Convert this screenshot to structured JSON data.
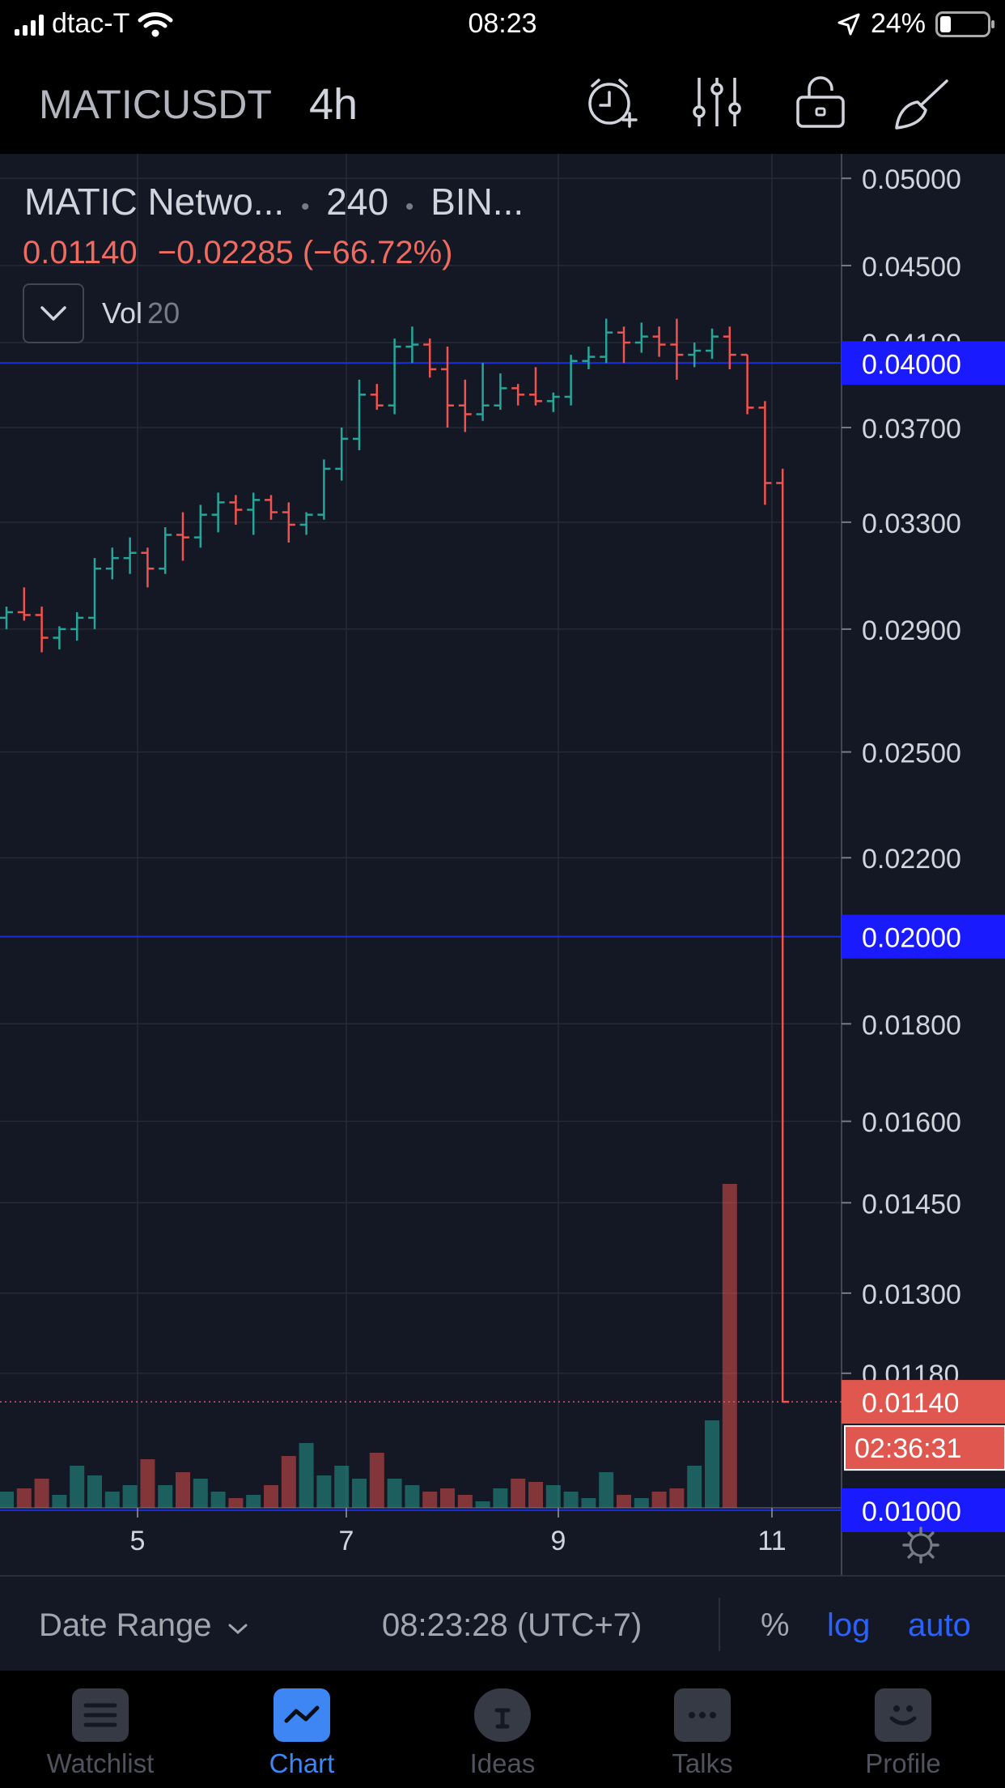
{
  "status_bar": {
    "carrier": "dtac-T",
    "time": "08:23",
    "battery": "24%"
  },
  "toolbar": {
    "symbol": "MATICUSDT",
    "interval": "4h",
    "icons": [
      "alarm-add-icon",
      "indicators-icon",
      "lock-icon",
      "drawing-icon"
    ]
  },
  "legend": {
    "name": "MATIC Netwo...",
    "resolution": "240",
    "exchange": "BIN...",
    "price": "0.01140",
    "change": "−0.02285 (−66.72%)",
    "vol_label": "Vol",
    "vol_length": "20"
  },
  "colors": {
    "up": "#26a69a",
    "down": "#ef5350",
    "background": "#141824",
    "accent": "#2962ff"
  },
  "chart_data": {
    "type": "ohlc",
    "scale": "log",
    "ylim": [
      0.01,
      0.051
    ],
    "y_ticks": [
      "0.05000",
      "0.04500",
      "0.04100",
      "0.03700",
      "0.03300",
      "0.02900",
      "0.02500",
      "0.02200",
      "0.01800",
      "0.01600",
      "0.01450",
      "0.01300",
      "0.01180"
    ],
    "x_ticks": [
      "5",
      "7",
      "9",
      "11"
    ],
    "horizontal_lines": [
      "0.04000",
      "0.02000",
      "0.01000"
    ],
    "last_price": "0.01140",
    "countdown": "02:36:31",
    "bars": [
      {
        "o": 0.0294,
        "h": 0.0298,
        "l": 0.029,
        "c": 0.0296
      },
      {
        "o": 0.0296,
        "h": 0.0305,
        "l": 0.0293,
        "c": 0.0295
      },
      {
        "o": 0.0295,
        "h": 0.0298,
        "l": 0.0282,
        "c": 0.0287
      },
      {
        "o": 0.0287,
        "h": 0.0291,
        "l": 0.0283,
        "c": 0.029
      },
      {
        "o": 0.029,
        "h": 0.0296,
        "l": 0.0286,
        "c": 0.0294
      },
      {
        "o": 0.0294,
        "h": 0.0316,
        "l": 0.029,
        "c": 0.0312
      },
      {
        "o": 0.0312,
        "h": 0.032,
        "l": 0.0308,
        "c": 0.0316
      },
      {
        "o": 0.0316,
        "h": 0.0324,
        "l": 0.031,
        "c": 0.0318
      },
      {
        "o": 0.0318,
        "h": 0.032,
        "l": 0.0305,
        "c": 0.0312
      },
      {
        "o": 0.0312,
        "h": 0.0328,
        "l": 0.031,
        "c": 0.0325
      },
      {
        "o": 0.0325,
        "h": 0.0334,
        "l": 0.0315,
        "c": 0.0324
      },
      {
        "o": 0.0324,
        "h": 0.0337,
        "l": 0.032,
        "c": 0.0333
      },
      {
        "o": 0.0333,
        "h": 0.0342,
        "l": 0.0326,
        "c": 0.0338
      },
      {
        "o": 0.0338,
        "h": 0.0341,
        "l": 0.0329,
        "c": 0.0335
      },
      {
        "o": 0.0335,
        "h": 0.0342,
        "l": 0.0325,
        "c": 0.0339
      },
      {
        "o": 0.0339,
        "h": 0.0341,
        "l": 0.0331,
        "c": 0.0334
      },
      {
        "o": 0.0334,
        "h": 0.0338,
        "l": 0.0322,
        "c": 0.0329
      },
      {
        "o": 0.0329,
        "h": 0.0334,
        "l": 0.0325,
        "c": 0.0333
      },
      {
        "o": 0.0333,
        "h": 0.0356,
        "l": 0.0331,
        "c": 0.0352
      },
      {
        "o": 0.0352,
        "h": 0.037,
        "l": 0.0347,
        "c": 0.0365
      },
      {
        "o": 0.0365,
        "h": 0.0392,
        "l": 0.036,
        "c": 0.0385
      },
      {
        "o": 0.0385,
        "h": 0.039,
        "l": 0.0378,
        "c": 0.038
      },
      {
        "o": 0.038,
        "h": 0.0412,
        "l": 0.0376,
        "c": 0.0408
      },
      {
        "o": 0.0408,
        "h": 0.0418,
        "l": 0.04,
        "c": 0.0409
      },
      {
        "o": 0.0409,
        "h": 0.0412,
        "l": 0.0393,
        "c": 0.0397
      },
      {
        "o": 0.0397,
        "h": 0.0408,
        "l": 0.037,
        "c": 0.038
      },
      {
        "o": 0.038,
        "h": 0.0392,
        "l": 0.0368,
        "c": 0.0376
      },
      {
        "o": 0.0376,
        "h": 0.04,
        "l": 0.0373,
        "c": 0.038
      },
      {
        "o": 0.038,
        "h": 0.0395,
        "l": 0.0378,
        "c": 0.0388
      },
      {
        "o": 0.0388,
        "h": 0.039,
        "l": 0.038,
        "c": 0.0385
      },
      {
        "o": 0.0385,
        "h": 0.0398,
        "l": 0.038,
        "c": 0.0382
      },
      {
        "o": 0.0382,
        "h": 0.0386,
        "l": 0.0377,
        "c": 0.0384
      },
      {
        "o": 0.0384,
        "h": 0.0404,
        "l": 0.038,
        "c": 0.0401
      },
      {
        "o": 0.0401,
        "h": 0.0408,
        "l": 0.0397,
        "c": 0.0403
      },
      {
        "o": 0.0403,
        "h": 0.0422,
        "l": 0.04,
        "c": 0.0415
      },
      {
        "o": 0.0415,
        "h": 0.0418,
        "l": 0.04,
        "c": 0.041
      },
      {
        "o": 0.041,
        "h": 0.042,
        "l": 0.0405,
        "c": 0.0413
      },
      {
        "o": 0.0413,
        "h": 0.0418,
        "l": 0.0403,
        "c": 0.0409
      },
      {
        "o": 0.0409,
        "h": 0.0422,
        "l": 0.0392,
        "c": 0.0404
      },
      {
        "o": 0.0404,
        "h": 0.041,
        "l": 0.0398,
        "c": 0.0406
      },
      {
        "o": 0.0406,
        "h": 0.0417,
        "l": 0.0402,
        "c": 0.0413
      },
      {
        "o": 0.0413,
        "h": 0.0418,
        "l": 0.0397,
        "c": 0.0404
      },
      {
        "o": 0.0404,
        "h": 0.0404,
        "l": 0.0376,
        "c": 0.0379
      },
      {
        "o": 0.0379,
        "h": 0.0382,
        "l": 0.0337,
        "c": 0.0346
      },
      {
        "o": 0.0346,
        "h": 0.0352,
        "l": 0.0114,
        "c": 0.0114
      }
    ],
    "volumes": [
      0.05,
      0.06,
      0.09,
      0.04,
      0.13,
      0.1,
      0.05,
      0.07,
      0.15,
      0.07,
      0.11,
      0.09,
      0.05,
      0.03,
      0.04,
      0.07,
      0.16,
      0.2,
      0.1,
      0.13,
      0.09,
      0.17,
      0.09,
      0.07,
      0.05,
      0.06,
      0.04,
      0.02,
      0.06,
      0.09,
      0.08,
      0.07,
      0.05,
      0.03,
      0.11,
      0.04,
      0.03,
      0.05,
      0.06,
      0.13,
      0.27,
      1.0,
      0.0,
      0.0,
      0.0
    ]
  },
  "range_bar": {
    "date_range": "Date Range",
    "clock": "08:23:28 (UTC+7)",
    "percent": "%",
    "log": "log",
    "auto": "auto"
  },
  "tabs": [
    {
      "label": "Watchlist",
      "icon": "list-icon"
    },
    {
      "label": "Chart",
      "icon": "chart-icon"
    },
    {
      "label": "Ideas",
      "icon": "lightbulb-icon"
    },
    {
      "label": "Talks",
      "icon": "chat-icon"
    },
    {
      "label": "Profile",
      "icon": "smiley-icon"
    }
  ]
}
